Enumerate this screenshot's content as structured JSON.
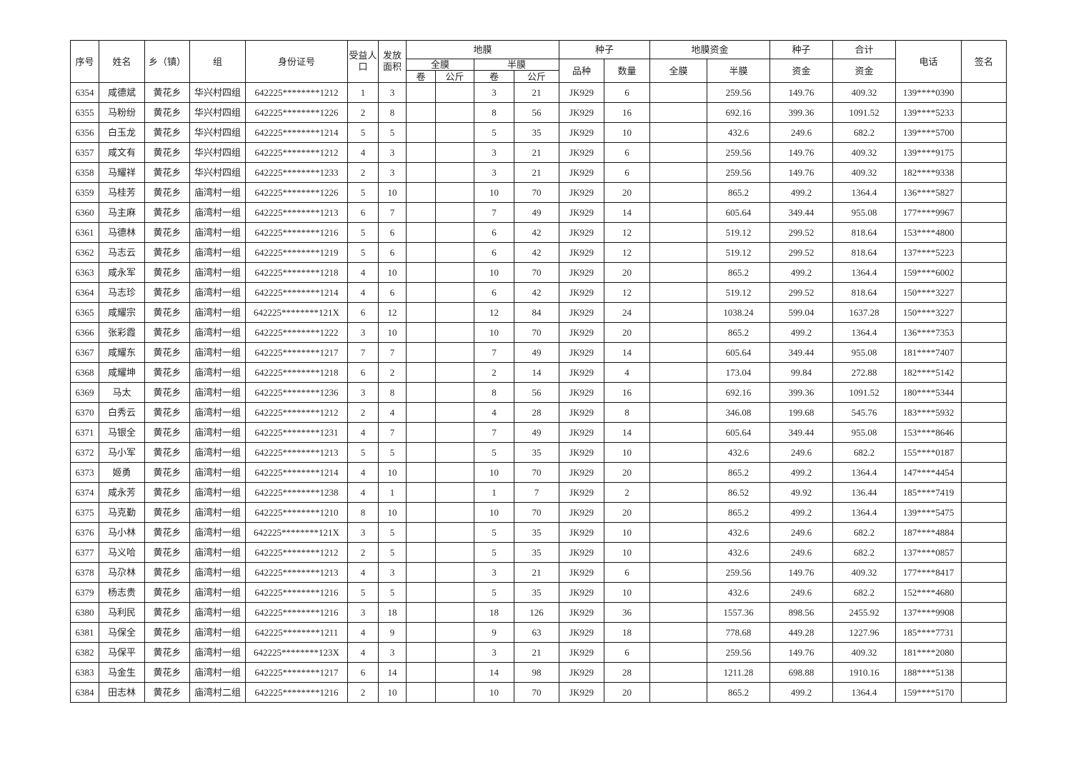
{
  "headers": {
    "seq": "序号",
    "name": "姓名",
    "town": "乡（镇）",
    "group": "组",
    "id": "身份证号",
    "beneficiaries": "受益人口",
    "area": "发放面积",
    "film": "地膜",
    "seed": "种子",
    "film_fund": "地膜资金",
    "seed2": "种子",
    "total": "合计",
    "phone": "电话",
    "sign": "签名",
    "full_film": "全膜",
    "half_film": "半膜",
    "variety": "品种",
    "quantity": "数量",
    "fund_full": "全膜",
    "fund_half": "半膜",
    "seed_fund": "资金",
    "total_fund": "资金",
    "roll1": "卷",
    "kg1": "公斤",
    "roll2": "卷",
    "kg2": "公斤"
  },
  "rows": [
    [
      "6354",
      "咸德斌",
      "黄花乡",
      "华兴村四组",
      "642225********1212",
      "1",
      "3",
      "",
      "",
      "3",
      "21",
      "JK929",
      "6",
      "",
      "259.56",
      "149.76",
      "409.32",
      "139****0390",
      ""
    ],
    [
      "6355",
      "马粉纷",
      "黄花乡",
      "华兴村四组",
      "642225********1226",
      "2",
      "8",
      "",
      "",
      "8",
      "56",
      "JK929",
      "16",
      "",
      "692.16",
      "399.36",
      "1091.52",
      "139****5233",
      ""
    ],
    [
      "6356",
      "白玉龙",
      "黄花乡",
      "华兴村四组",
      "642225********1214",
      "5",
      "5",
      "",
      "",
      "5",
      "35",
      "JK929",
      "10",
      "",
      "432.6",
      "249.6",
      "682.2",
      "139****5700",
      ""
    ],
    [
      "6357",
      "咸文有",
      "黄花乡",
      "华兴村四组",
      "642225********1212",
      "4",
      "3",
      "",
      "",
      "3",
      "21",
      "JK929",
      "6",
      "",
      "259.56",
      "149.76",
      "409.32",
      "139****9175",
      ""
    ],
    [
      "6358",
      "马耀祥",
      "黄花乡",
      "华兴村四组",
      "642225********1233",
      "2",
      "3",
      "",
      "",
      "3",
      "21",
      "JK929",
      "6",
      "",
      "259.56",
      "149.76",
      "409.32",
      "182****9338",
      ""
    ],
    [
      "6359",
      "马桂芳",
      "黄花乡",
      "庙湾村一组",
      "642225********1226",
      "5",
      "10",
      "",
      "",
      "10",
      "70",
      "JK929",
      "20",
      "",
      "865.2",
      "499.2",
      "1364.4",
      "136****5827",
      ""
    ],
    [
      "6360",
      "马主麻",
      "黄花乡",
      "庙湾村一组",
      "642225********1213",
      "6",
      "7",
      "",
      "",
      "7",
      "49",
      "JK929",
      "14",
      "",
      "605.64",
      "349.44",
      "955.08",
      "177****9967",
      ""
    ],
    [
      "6361",
      "马德林",
      "黄花乡",
      "庙湾村一组",
      "642225********1216",
      "5",
      "6",
      "",
      "",
      "6",
      "42",
      "JK929",
      "12",
      "",
      "519.12",
      "299.52",
      "818.64",
      "153****4800",
      ""
    ],
    [
      "6362",
      "马志云",
      "黄花乡",
      "庙湾村一组",
      "642225********1219",
      "5",
      "6",
      "",
      "",
      "6",
      "42",
      "JK929",
      "12",
      "",
      "519.12",
      "299.52",
      "818.64",
      "137****5223",
      ""
    ],
    [
      "6363",
      "咸永军",
      "黄花乡",
      "庙湾村一组",
      "642225********1218",
      "4",
      "10",
      "",
      "",
      "10",
      "70",
      "JK929",
      "20",
      "",
      "865.2",
      "499.2",
      "1364.4",
      "159****6002",
      ""
    ],
    [
      "6364",
      "马志珍",
      "黄花乡",
      "庙湾村一组",
      "642225********1214",
      "4",
      "6",
      "",
      "",
      "6",
      "42",
      "JK929",
      "12",
      "",
      "519.12",
      "299.52",
      "818.64",
      "150****3227",
      ""
    ],
    [
      "6365",
      "咸耀宗",
      "黄花乡",
      "庙湾村一组",
      "642225********121X",
      "6",
      "12",
      "",
      "",
      "12",
      "84",
      "JK929",
      "24",
      "",
      "1038.24",
      "599.04",
      "1637.28",
      "150****3227",
      ""
    ],
    [
      "6366",
      "张彩霞",
      "黄花乡",
      "庙湾村一组",
      "642225********1222",
      "3",
      "10",
      "",
      "",
      "10",
      "70",
      "JK929",
      "20",
      "",
      "865.2",
      "499.2",
      "1364.4",
      "136****7353",
      ""
    ],
    [
      "6367",
      "咸耀东",
      "黄花乡",
      "庙湾村一组",
      "642225********1217",
      "7",
      "7",
      "",
      "",
      "7",
      "49",
      "JK929",
      "14",
      "",
      "605.64",
      "349.44",
      "955.08",
      "181****7407",
      ""
    ],
    [
      "6368",
      "咸耀坤",
      "黄花乡",
      "庙湾村一组",
      "642225********1218",
      "6",
      "2",
      "",
      "",
      "2",
      "14",
      "JK929",
      "4",
      "",
      "173.04",
      "99.84",
      "272.88",
      "182****5142",
      ""
    ],
    [
      "6369",
      "马太",
      "黄花乡",
      "庙湾村一组",
      "642225********1236",
      "3",
      "8",
      "",
      "",
      "8",
      "56",
      "JK929",
      "16",
      "",
      "692.16",
      "399.36",
      "1091.52",
      "180****5344",
      ""
    ],
    [
      "6370",
      "白秀云",
      "黄花乡",
      "庙湾村一组",
      "642225********1212",
      "2",
      "4",
      "",
      "",
      "4",
      "28",
      "JK929",
      "8",
      "",
      "346.08",
      "199.68",
      "545.76",
      "183****5932",
      ""
    ],
    [
      "6371",
      "马银全",
      "黄花乡",
      "庙湾村一组",
      "642225********1231",
      "4",
      "7",
      "",
      "",
      "7",
      "49",
      "JK929",
      "14",
      "",
      "605.64",
      "349.44",
      "955.08",
      "153****8646",
      ""
    ],
    [
      "6372",
      "马小军",
      "黄花乡",
      "庙湾村一组",
      "642225********1213",
      "5",
      "5",
      "",
      "",
      "5",
      "35",
      "JK929",
      "10",
      "",
      "432.6",
      "249.6",
      "682.2",
      "155****0187",
      ""
    ],
    [
      "6373",
      "姬勇",
      "黄花乡",
      "庙湾村一组",
      "642225********1214",
      "4",
      "10",
      "",
      "",
      "10",
      "70",
      "JK929",
      "20",
      "",
      "865.2",
      "499.2",
      "1364.4",
      "147****4454",
      ""
    ],
    [
      "6374",
      "咸永芳",
      "黄花乡",
      "庙湾村一组",
      "642225********1238",
      "4",
      "1",
      "",
      "",
      "1",
      "7",
      "JK929",
      "2",
      "",
      "86.52",
      "49.92",
      "136.44",
      "185****7419",
      ""
    ],
    [
      "6375",
      "马克勤",
      "黄花乡",
      "庙湾村一组",
      "642225********1210",
      "8",
      "10",
      "",
      "",
      "10",
      "70",
      "JK929",
      "20",
      "",
      "865.2",
      "499.2",
      "1364.4",
      "139****5475",
      ""
    ],
    [
      "6376",
      "马小林",
      "黄花乡",
      "庙湾村一组",
      "642225********121X",
      "3",
      "5",
      "",
      "",
      "5",
      "35",
      "JK929",
      "10",
      "",
      "432.6",
      "249.6",
      "682.2",
      "187****4884",
      ""
    ],
    [
      "6377",
      "马义哈",
      "黄花乡",
      "庙湾村一组",
      "642225********1212",
      "2",
      "5",
      "",
      "",
      "5",
      "35",
      "JK929",
      "10",
      "",
      "432.6",
      "249.6",
      "682.2",
      "137****0857",
      ""
    ],
    [
      "6378",
      "马尕林",
      "黄花乡",
      "庙湾村一组",
      "642225********1213",
      "4",
      "3",
      "",
      "",
      "3",
      "21",
      "JK929",
      "6",
      "",
      "259.56",
      "149.76",
      "409.32",
      "177****8417",
      ""
    ],
    [
      "6379",
      "杨志贵",
      "黄花乡",
      "庙湾村一组",
      "642225********1216",
      "5",
      "5",
      "",
      "",
      "5",
      "35",
      "JK929",
      "10",
      "",
      "432.6",
      "249.6",
      "682.2",
      "152****4680",
      ""
    ],
    [
      "6380",
      "马利民",
      "黄花乡",
      "庙湾村一组",
      "642225********1216",
      "3",
      "18",
      "",
      "",
      "18",
      "126",
      "JK929",
      "36",
      "",
      "1557.36",
      "898.56",
      "2455.92",
      "137****9908",
      ""
    ],
    [
      "6381",
      "马保全",
      "黄花乡",
      "庙湾村一组",
      "642225********1211",
      "4",
      "9",
      "",
      "",
      "9",
      "63",
      "JK929",
      "18",
      "",
      "778.68",
      "449.28",
      "1227.96",
      "185****7731",
      ""
    ],
    [
      "6382",
      "马保平",
      "黄花乡",
      "庙湾村一组",
      "642225********123X",
      "4",
      "3",
      "",
      "",
      "3",
      "21",
      "JK929",
      "6",
      "",
      "259.56",
      "149.76",
      "409.32",
      "181****2080",
      ""
    ],
    [
      "6383",
      "马金生",
      "黄花乡",
      "庙湾村一组",
      "642225********1217",
      "6",
      "14",
      "",
      "",
      "14",
      "98",
      "JK929",
      "28",
      "",
      "1211.28",
      "698.88",
      "1910.16",
      "188****5138",
      ""
    ],
    [
      "6384",
      "田志林",
      "黄花乡",
      "庙湾村二组",
      "642225********1216",
      "2",
      "10",
      "",
      "",
      "10",
      "70",
      "JK929",
      "20",
      "",
      "865.2",
      "499.2",
      "1364.4",
      "159****5170",
      ""
    ]
  ]
}
